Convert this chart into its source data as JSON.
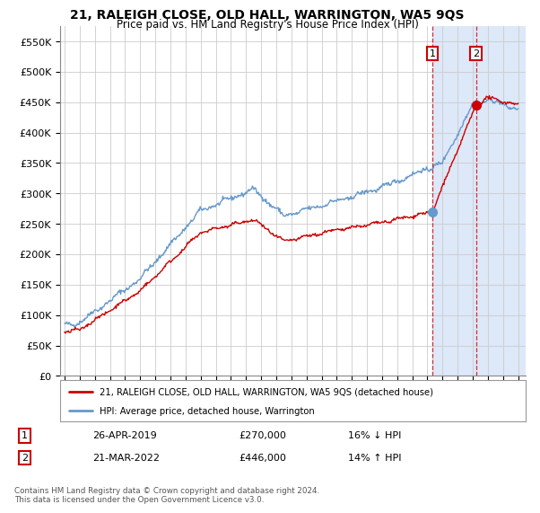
{
  "title": "21, RALEIGH CLOSE, OLD HALL, WARRINGTON, WA5 9QS",
  "subtitle": "Price paid vs. HM Land Registry's House Price Index (HPI)",
  "legend_line1": "21, RALEIGH CLOSE, OLD HALL, WARRINGTON, WA5 9QS (detached house)",
  "legend_line2": "HPI: Average price, detached house, Warrington",
  "transaction1_label": "1",
  "transaction1_date": "26-APR-2019",
  "transaction1_price": "£270,000",
  "transaction1_change": "16% ↓ HPI",
  "transaction2_label": "2",
  "transaction2_date": "21-MAR-2022",
  "transaction2_price": "£446,000",
  "transaction2_change": "14% ↑ HPI",
  "footer": "Contains HM Land Registry data © Crown copyright and database right 2024.\nThis data is licensed under the Open Government Licence v3.0.",
  "red_color": "#cc0000",
  "blue_color": "#6699cc",
  "background_color": "#ffffff",
  "grid_color": "#cccccc",
  "highlight_bg": "#dde8f8",
  "ylim_min": 0,
  "ylim_max": 575000,
  "year_start": 1995,
  "year_end": 2025,
  "transaction1_year": 2019.32,
  "transaction2_year": 2022.22,
  "transaction1_value": 270000,
  "transaction2_value": 446000
}
